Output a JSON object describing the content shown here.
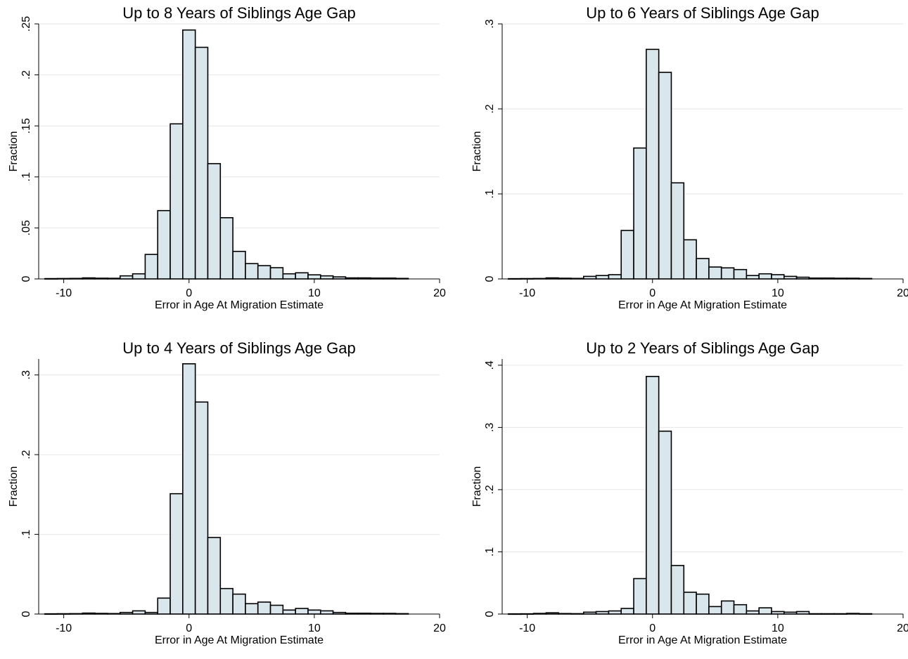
{
  "colors": {
    "bar_fill": "#d9e6ec",
    "bar_stroke": "#000000",
    "grid": "#e6e6e6",
    "axis": "#000000"
  },
  "chart_data": [
    {
      "type": "bar",
      "title": "Up to 8 Years of Siblings Age Gap",
      "xlabel": "Error in Age At Migration Estimate",
      "ylabel": "Fraction",
      "xlim": [
        -12,
        20
      ],
      "ylim": [
        0,
        0.25
      ],
      "x_ticks": [
        -10,
        0,
        10,
        20
      ],
      "x_tick_labels": [
        "-10",
        "0",
        "10",
        "20"
      ],
      "y_ticks": [
        0,
        0.05,
        0.1,
        0.15,
        0.2,
        0.25
      ],
      "y_tick_labels": [
        "0",
        ".05",
        ".1",
        ".15",
        ".2",
        ".25"
      ],
      "grid": true,
      "bin_width": 1,
      "x": [
        -11,
        -10,
        -9,
        -8,
        -7,
        -6,
        -5,
        -4,
        -3,
        -2,
        -1,
        0,
        1,
        2,
        3,
        4,
        5,
        6,
        7,
        8,
        9,
        10,
        11,
        12,
        13,
        14,
        15,
        16,
        17
      ],
      "values": [
        0.0003,
        0.0004,
        0.0005,
        0.001,
        0.0007,
        0.0006,
        0.003,
        0.005,
        0.024,
        0.067,
        0.152,
        0.244,
        0.227,
        0.113,
        0.06,
        0.027,
        0.015,
        0.013,
        0.011,
        0.005,
        0.006,
        0.004,
        0.003,
        0.002,
        0.001,
        0.001,
        0.0008,
        0.0008,
        0.0005
      ]
    },
    {
      "type": "bar",
      "title": "Up to 6 Years of Siblings Age Gap",
      "xlabel": "Error in Age At Migration Estimate",
      "ylabel": "Fraction",
      "xlim": [
        -12,
        20
      ],
      "ylim": [
        0,
        0.3
      ],
      "x_ticks": [
        -10,
        0,
        10,
        20
      ],
      "x_tick_labels": [
        "-10",
        "0",
        "10",
        "20"
      ],
      "y_ticks": [
        0,
        0.1,
        0.2,
        0.3
      ],
      "y_tick_labels": [
        "0",
        ".1",
        ".2",
        ".3"
      ],
      "grid": true,
      "bin_width": 1,
      "x": [
        -11,
        -10,
        -9,
        -8,
        -7,
        -6,
        -5,
        -4,
        -3,
        -2,
        -1,
        0,
        1,
        2,
        3,
        4,
        5,
        6,
        7,
        8,
        9,
        10,
        11,
        12,
        13,
        14,
        15,
        16,
        17
      ],
      "values": [
        0.0003,
        0.0004,
        0.0005,
        0.0012,
        0.0008,
        0.0006,
        0.003,
        0.004,
        0.005,
        0.057,
        0.154,
        0.27,
        0.243,
        0.113,
        0.046,
        0.024,
        0.014,
        0.013,
        0.011,
        0.004,
        0.006,
        0.005,
        0.003,
        0.002,
        0.001,
        0.001,
        0.0008,
        0.0008,
        0.0005
      ]
    },
    {
      "type": "bar",
      "title": "Up to 4 Years of Siblings Age Gap",
      "xlabel": "Error in Age At Migration Estimate",
      "ylabel": "Fraction",
      "xlim": [
        -12,
        20
      ],
      "ylim": [
        0,
        0.32
      ],
      "x_ticks": [
        -10,
        0,
        10,
        20
      ],
      "x_tick_labels": [
        "-10",
        "0",
        "10",
        "20"
      ],
      "y_ticks": [
        0,
        0.1,
        0.2,
        0.3
      ],
      "y_tick_labels": [
        "0",
        ".1",
        ".2",
        ".3"
      ],
      "grid": true,
      "bin_width": 1,
      "x": [
        -11,
        -10,
        -9,
        -8,
        -7,
        -6,
        -5,
        -4,
        -3,
        -2,
        -1,
        0,
        1,
        2,
        3,
        4,
        5,
        6,
        7,
        8,
        9,
        10,
        11,
        12,
        13,
        14,
        15,
        16,
        17
      ],
      "values": [
        0.0003,
        0.0004,
        0.0005,
        0.0012,
        0.0008,
        0.0006,
        0.002,
        0.004,
        0.002,
        0.02,
        0.151,
        0.314,
        0.266,
        0.096,
        0.032,
        0.025,
        0.013,
        0.015,
        0.011,
        0.005,
        0.007,
        0.005,
        0.004,
        0.002,
        0.001,
        0.001,
        0.0008,
        0.0008,
        0.0005
      ]
    },
    {
      "type": "bar",
      "title": "Up to 2 Years of Siblings Age Gap",
      "xlabel": "Error in Age At Migration Estimate",
      "ylabel": "Fraction",
      "xlim": [
        -12,
        20
      ],
      "ylim": [
        0,
        0.41
      ],
      "x_ticks": [
        -10,
        0,
        10,
        20
      ],
      "x_tick_labels": [
        "-10",
        "0",
        "10",
        "20"
      ],
      "y_ticks": [
        0,
        0.1,
        0.2,
        0.3,
        0.4
      ],
      "y_tick_labels": [
        "0",
        ".1",
        ".2",
        ".3",
        ".4"
      ],
      "grid": true,
      "bin_width": 1,
      "x": [
        -11,
        -10,
        -9,
        -8,
        -7,
        -6,
        -5,
        -4,
        -3,
        -2,
        -1,
        0,
        1,
        2,
        3,
        4,
        5,
        6,
        7,
        8,
        9,
        10,
        11,
        12,
        13,
        14,
        15,
        16,
        17
      ],
      "values": [
        0.0003,
        0.0004,
        0.001,
        0.002,
        0.0008,
        0.0006,
        0.003,
        0.004,
        0.005,
        0.009,
        0.057,
        0.382,
        0.294,
        0.078,
        0.035,
        0.032,
        0.012,
        0.021,
        0.015,
        0.005,
        0.01,
        0.004,
        0.003,
        0.004,
        0.0005,
        0.0005,
        0.0005,
        0.001,
        0.0005
      ]
    }
  ]
}
